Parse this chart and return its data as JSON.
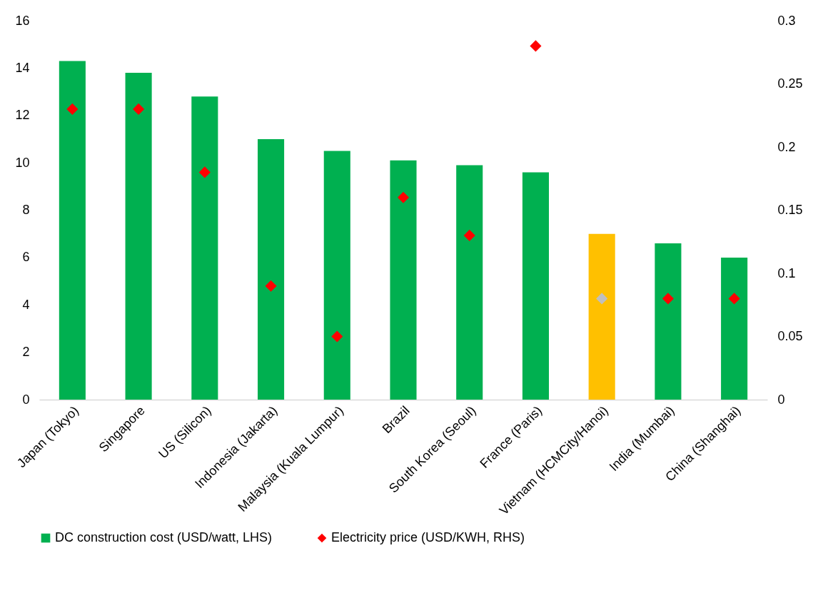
{
  "chart_data": {
    "type": "bar",
    "categories": [
      "Japan (Tokyo)",
      "Singapore",
      "US (Silicon)",
      "Indonesia (Jakarta)",
      "Malaysia (Kuala Lumpur)",
      "Brazil",
      "South Korea (Seoul)",
      "France (Paris)",
      "Vietnam (HCMCity/Hanoi)",
      "India (Mumbai)",
      "China (Shanghai)"
    ],
    "series": [
      {
        "name": "DC construction cost (USD/watt, LHS)",
        "color": "#00b050",
        "colors": [
          "#00b050",
          "#00b050",
          "#00b050",
          "#00b050",
          "#00b050",
          "#00b050",
          "#00b050",
          "#00b050",
          "#ffc000",
          "#00b050",
          "#00b050"
        ],
        "values": [
          14.3,
          13.8,
          12.8,
          11.0,
          10.5,
          10.1,
          9.9,
          9.6,
          7.0,
          6.6,
          6.0
        ]
      },
      {
        "name": "Electricity price (USD/KWH, RHS)",
        "type": "scatter",
        "axis": "y2",
        "marker": "diamond",
        "color": "#ff0000",
        "colors": [
          "#ff0000",
          "#ff0000",
          "#ff0000",
          "#ff0000",
          "#ff0000",
          "#ff0000",
          "#ff0000",
          "#ff0000",
          "#bfbfbf",
          "#ff0000",
          "#ff0000"
        ],
        "values": [
          0.23,
          0.23,
          0.18,
          0.09,
          0.05,
          0.16,
          0.13,
          0.28,
          0.08,
          0.08,
          0.08
        ]
      }
    ],
    "ylim": [
      0,
      16
    ],
    "yticks": [
      0,
      2,
      4,
      6,
      8,
      10,
      12,
      14,
      16
    ],
    "y2lim": [
      0,
      0.3
    ],
    "y2ticks": [
      0,
      0.05,
      0.1,
      0.15,
      0.2,
      0.25,
      0.3
    ],
    "legend": "bottom"
  }
}
